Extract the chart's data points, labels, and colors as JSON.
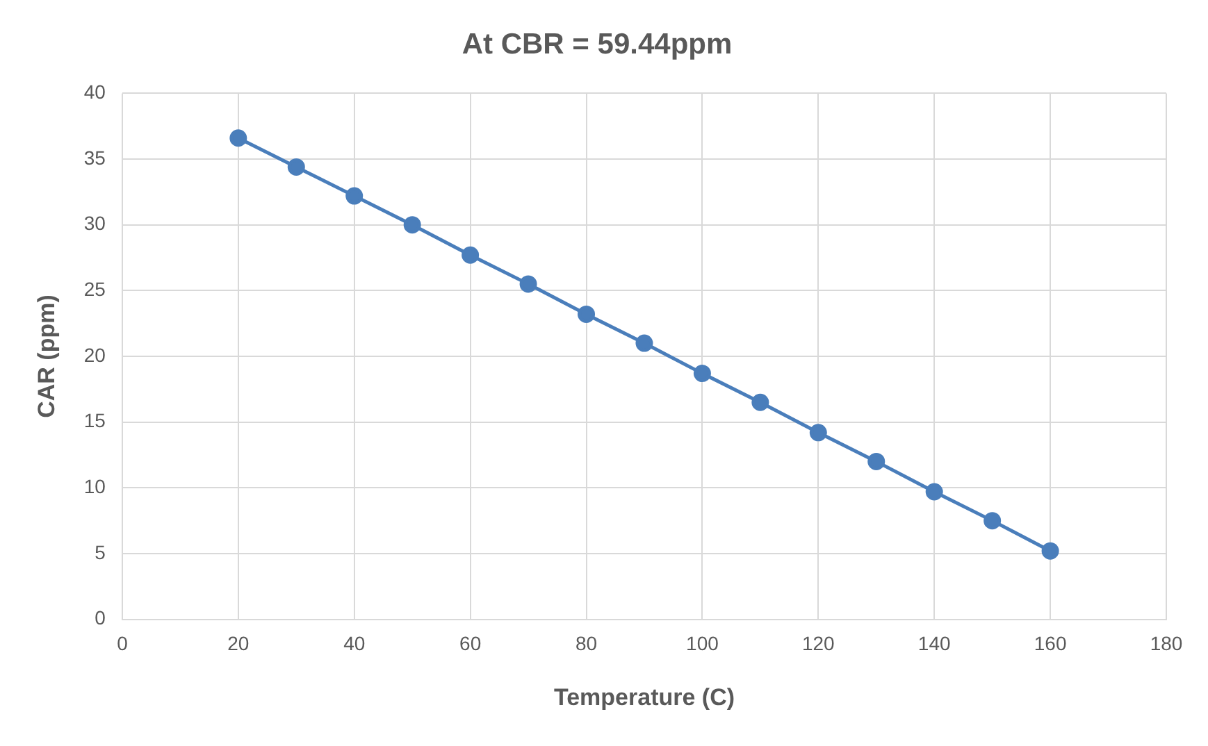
{
  "chart_data": {
    "type": "line",
    "title": "At CBR = 59.44ppm",
    "xlabel": "Temperature (C)",
    "ylabel": "CAR (ppm)",
    "x": [
      20,
      30,
      40,
      50,
      60,
      70,
      80,
      90,
      100,
      110,
      120,
      130,
      140,
      150,
      160
    ],
    "series": [
      {
        "color": "#4a7ebb",
        "values": [
          36.6,
          34.4,
          32.2,
          30.0,
          27.7,
          25.5,
          23.2,
          21.0,
          18.7,
          16.5,
          14.2,
          12.0,
          9.7,
          7.5,
          5.2
        ]
      }
    ],
    "xlim": [
      0,
      180
    ],
    "xticks": [
      0,
      20,
      40,
      60,
      80,
      100,
      120,
      140,
      160,
      180
    ],
    "ylim": [
      0,
      40
    ],
    "yticks": [
      0,
      5,
      10,
      15,
      20,
      25,
      30,
      35,
      40
    ],
    "grid": true,
    "legend": false,
    "marker": "circle",
    "line_style": "solid"
  }
}
